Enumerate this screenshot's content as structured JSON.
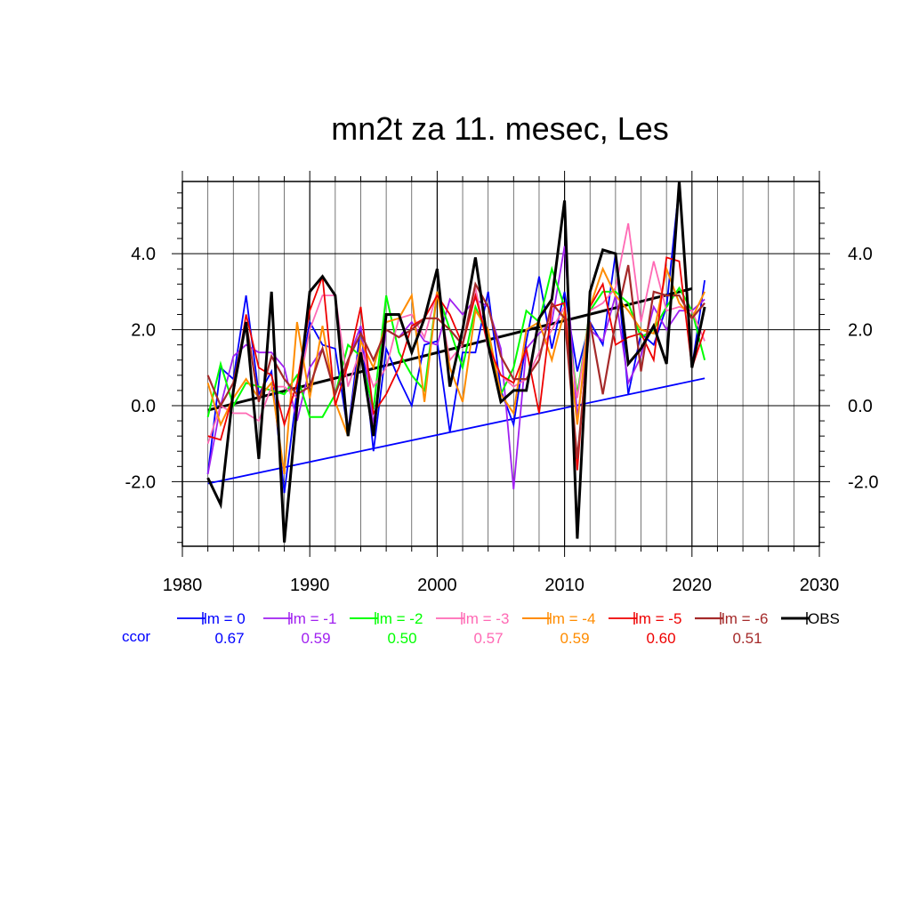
{
  "chart_data": {
    "type": "line",
    "title": "mn2t za 11. mesec, Les",
    "xlim": [
      1980,
      2030
    ],
    "ylim": [
      -3.7,
      5.9
    ],
    "x_ticks": [
      1980,
      1990,
      2000,
      2010,
      2020,
      2030
    ],
    "x_tick_labels": [
      "1980",
      "1990",
      "2000",
      "2010",
      "2020",
      "2030"
    ],
    "y_ticks": [
      -2.0,
      0.0,
      2.0,
      4.0
    ],
    "y_tick_labels": [
      "-2.0",
      "0.0",
      "2.0",
      "4.0"
    ],
    "grid": true,
    "legend_position": "bottom",
    "ccor_label": "ccor",
    "x": [
      1982,
      1983,
      1984,
      1985,
      1986,
      1987,
      1988,
      1989,
      1990,
      1991,
      1992,
      1993,
      1994,
      1995,
      1996,
      1997,
      1998,
      1999,
      2000,
      2001,
      2002,
      2003,
      2004,
      2005,
      2006,
      2007,
      2008,
      2009,
      2010,
      2011,
      2012,
      2013,
      2014,
      2015,
      2016,
      2017,
      2018,
      2019,
      2020,
      2021
    ],
    "series": [
      {
        "name": "lm = 0",
        "ccor": "0.67",
        "color": "#0000ff",
        "width": 1.8,
        "values": [
          -1.8,
          1.0,
          0.7,
          2.9,
          0.3,
          0.9,
          -2.3,
          0.4,
          2.2,
          1.6,
          1.5,
          -0.7,
          2.1,
          -1.2,
          1.5,
          0.7,
          0.0,
          1.6,
          1.7,
          -0.7,
          1.4,
          1.4,
          3.0,
          0.4,
          -0.5,
          1.7,
          3.4,
          1.5,
          3.0,
          0.9,
          2.2,
          1.6,
          4.0,
          0.3,
          1.9,
          1.6,
          2.6,
          5.8,
          1.0,
          3.3
        ]
      },
      {
        "name": "lm = -1",
        "ccor": "0.59",
        "color": "#a020f0",
        "width": 1.8,
        "values": [
          -1.8,
          0.0,
          1.3,
          1.6,
          1.4,
          1.4,
          1.0,
          -0.4,
          1.0,
          1.5,
          0.3,
          1.2,
          2.1,
          -0.5,
          2.0,
          1.8,
          2.2,
          1.7,
          1.6,
          2.8,
          2.4,
          2.8,
          2.6,
          1.5,
          -2.2,
          1.5,
          1.9,
          2.2,
          4.2,
          -0.3,
          2.0,
          1.7,
          2.9,
          0.6,
          1.3,
          2.6,
          2.0,
          2.5,
          2.5,
          2.8
        ]
      },
      {
        "name": "lm = -2",
        "ccor": "0.50",
        "color": "#00ff00",
        "width": 2.0,
        "values": [
          -0.3,
          1.1,
          0.0,
          0.6,
          0.5,
          0.4,
          0.3,
          0.8,
          -0.3,
          -0.3,
          0.3,
          1.6,
          1.3,
          -0.1,
          2.9,
          1.4,
          0.8,
          0.4,
          3.0,
          2.0,
          1.0,
          2.6,
          1.8,
          0.3,
          1.0,
          2.5,
          2.2,
          3.6,
          2.6,
          0.3,
          2.5,
          3.0,
          3.0,
          2.7,
          1.8,
          2.0,
          2.6,
          3.1,
          2.5,
          1.2
        ]
      },
      {
        "name": "lm = -3",
        "ccor": "0.57",
        "color": "#ff69b4",
        "width": 1.8,
        "values": [
          -1.0,
          0.0,
          -0.2,
          -0.2,
          -0.4,
          0.5,
          0.5,
          0.2,
          2.0,
          2.9,
          2.9,
          0.5,
          1.5,
          0.5,
          1.0,
          2.3,
          2.4,
          1.8,
          3.0,
          1.2,
          1.6,
          3.1,
          1.5,
          0.8,
          0.5,
          0.7,
          1.4,
          2.0,
          2.6,
          0.2,
          2.5,
          2.7,
          3.1,
          4.8,
          2.2,
          3.8,
          2.5,
          2.6,
          2.5,
          1.7
        ]
      },
      {
        "name": "lm = -4",
        "ccor": "0.59",
        "color": "#ff8c00",
        "width": 2.0,
        "values": [
          0.6,
          -0.5,
          0.2,
          0.7,
          0.2,
          0.6,
          -1.8,
          2.2,
          0.2,
          2.1,
          0.1,
          -0.8,
          1.7,
          1.0,
          2.2,
          2.3,
          2.9,
          0.1,
          3.0,
          1.0,
          0.1,
          2.5,
          2.0,
          0.3,
          -0.2,
          2.0,
          2.2,
          1.2,
          2.5,
          -0.5,
          2.6,
          3.6,
          2.9,
          2.5,
          2.0,
          1.9,
          3.6,
          2.7,
          2.3,
          3.0
        ]
      },
      {
        "name": "lm = -5",
        "ccor": "0.60",
        "color": "#ee0000",
        "width": 1.8,
        "values": [
          -0.8,
          -0.9,
          0.3,
          2.4,
          1.0,
          0.8,
          -0.5,
          0.6,
          2.5,
          3.4,
          0.0,
          1.1,
          2.6,
          -0.2,
          0.3,
          1.0,
          2.1,
          2.3,
          2.9,
          2.4,
          1.6,
          2.9,
          1.6,
          0.8,
          0.6,
          1.5,
          -0.2,
          2.6,
          2.7,
          -1.7,
          2.6,
          3.2,
          1.6,
          1.8,
          1.9,
          1.2,
          3.9,
          3.8,
          1.0,
          2.0
        ]
      },
      {
        "name": "lm = -6",
        "ccor": "0.51",
        "color": "#a52a2a",
        "width": 2.2,
        "values": [
          0.8,
          0.0,
          0.6,
          2.2,
          0.1,
          1.3,
          0.7,
          0.3,
          0.5,
          1.5,
          0.3,
          1.2,
          1.9,
          1.2,
          2.0,
          1.8,
          2.0,
          2.3,
          2.3,
          2.0,
          1.6,
          3.2,
          2.6,
          1.3,
          0.7,
          0.7,
          1.2,
          2.7,
          2.3,
          -1.4,
          2.2,
          0.3,
          2.2,
          3.7,
          0.9,
          3.0,
          2.9,
          2.9,
          2.3,
          2.7
        ]
      },
      {
        "name": "OBS",
        "color": "#000000",
        "width": 3.0,
        "values": [
          -1.9,
          -2.6,
          0.4,
          2.2,
          -1.4,
          3.0,
          -3.6,
          0.0,
          3.0,
          3.4,
          2.9,
          -0.8,
          1.4,
          -0.8,
          2.4,
          2.4,
          1.4,
          2.3,
          3.6,
          0.5,
          2.0,
          3.9,
          1.6,
          0.1,
          0.4,
          0.4,
          2.3,
          2.8,
          5.4,
          -3.5,
          3.0,
          4.1,
          4.0,
          1.1,
          1.5,
          2.1,
          1.1,
          5.9,
          1.0,
          2.6
        ]
      }
    ],
    "trend_lines": [
      {
        "series": "lm = 0",
        "color": "#0000ff",
        "width": 1.8,
        "x": [
          1982,
          2021
        ],
        "y": [
          -2.05,
          0.72
        ]
      },
      {
        "series": "OBS",
        "color": "#000000",
        "width": 3.0,
        "x": [
          1982,
          2020
        ],
        "y": [
          -0.12,
          3.08
        ]
      }
    ]
  }
}
